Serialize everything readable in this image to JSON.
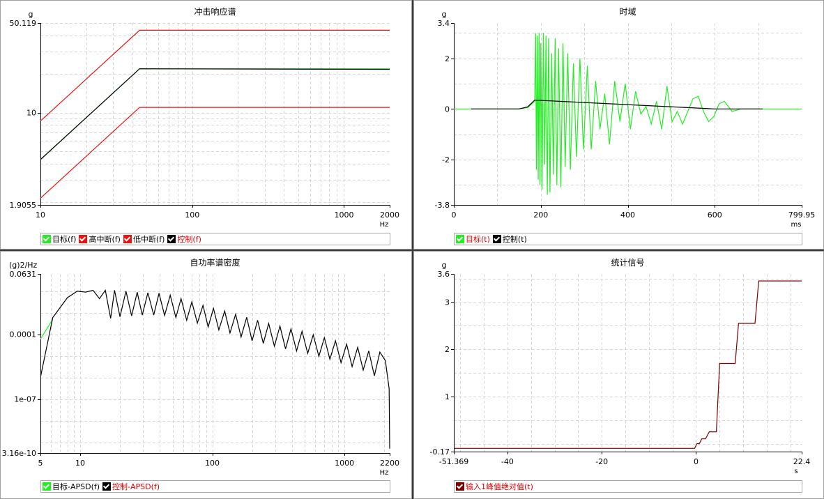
{
  "colors": {
    "green": "#22ee22",
    "red": "#ee1111",
    "black": "#000000",
    "maroon": "#7a0000",
    "grid": "#d6d6d6"
  },
  "chart_data": [
    {
      "id": "srs",
      "type": "line",
      "title": "冲击响应谱",
      "yunit": "g",
      "xunit": "Hz",
      "xscale": "log",
      "yscale": "log",
      "xlim": [
        10,
        2000
      ],
      "ylim": [
        1.9055,
        50.119
      ],
      "xticks": [
        {
          "v": 10,
          "t": "10"
        },
        {
          "v": 100,
          "t": "100"
        },
        {
          "v": 1000,
          "t": "1000"
        },
        {
          "v": 2000,
          "t": "2000"
        }
      ],
      "yticks": [
        {
          "v": 1.9055,
          "t": "1.9055"
        },
        {
          "v": 10,
          "t": "10"
        },
        {
          "v": 50.119,
          "t": "50.119"
        }
      ],
      "series": [
        {
          "name": "目标(f)",
          "color": "green",
          "x": [
            10,
            45,
            2000
          ],
          "y": [
            4.3,
            22,
            22
          ]
        },
        {
          "name": "高中断(f)",
          "color": "red",
          "x": [
            10,
            45,
            2000
          ],
          "y": [
            8.6,
            44,
            44
          ]
        },
        {
          "name": "低中断(f)",
          "color": "red",
          "x": [
            10,
            45,
            2000
          ],
          "y": [
            2.15,
            11,
            11
          ]
        },
        {
          "name": "控制(f)",
          "color": "black",
          "x": [
            10,
            45,
            2000
          ],
          "y": [
            4.3,
            22,
            21.8
          ]
        }
      ],
      "legend": [
        {
          "label": "目标(f)",
          "box": "green",
          "text": "black"
        },
        {
          "label": "高中断(f)",
          "box": "red",
          "text": "black"
        },
        {
          "label": "低中断(f)",
          "box": "red",
          "text": "black"
        },
        {
          "label": "控制(f)",
          "box": "black",
          "text": "red"
        }
      ]
    },
    {
      "id": "time",
      "type": "line",
      "title": "时域",
      "yunit": "g",
      "xunit": "ms",
      "xscale": "linear",
      "yscale": "linear",
      "xlim": [
        0,
        799.95
      ],
      "ylim": [
        -3.8,
        3.4
      ],
      "xticks": [
        {
          "v": 0,
          "t": "0"
        },
        {
          "v": 200,
          "t": "200"
        },
        {
          "v": 400,
          "t": "400"
        },
        {
          "v": 600,
          "t": "600"
        },
        {
          "v": 799.95,
          "t": "799.95"
        }
      ],
      "yticks": [
        {
          "v": -3.8,
          "t": "-3.8"
        },
        {
          "v": -2,
          "t": "-2"
        },
        {
          "v": 0,
          "t": "0"
        },
        {
          "v": 2,
          "t": "2"
        },
        {
          "v": 3.4,
          "t": "3.4"
        }
      ],
      "series": [
        {
          "name": "目标(t)",
          "color": "green",
          "x": [
            0,
            150,
            170,
            186,
            188,
            190,
            192,
            194,
            196,
            198,
            200,
            203,
            206,
            209,
            212,
            215,
            218,
            221,
            225,
            229,
            233,
            237,
            241,
            246,
            251,
            256,
            262,
            268,
            275,
            282,
            290,
            298,
            307,
            316,
            326,
            336,
            347,
            358,
            370,
            382,
            394,
            406,
            418,
            430,
            442,
            454,
            466,
            478,
            490,
            502,
            514,
            526,
            538,
            550,
            562,
            574,
            586,
            598,
            610,
            622,
            640,
            660,
            800
          ],
          "y": [
            0,
            0,
            0.05,
            0.3,
            3.0,
            -2.4,
            2.9,
            -2.8,
            3.0,
            -3.0,
            2.6,
            -3.2,
            3.0,
            -2.2,
            2.9,
            -3.4,
            2.8,
            -3.3,
            2.2,
            -2.6,
            2.8,
            -3.0,
            2.4,
            -3.1,
            2.6,
            -2.3,
            2.2,
            -2.4,
            1.8,
            -1.9,
            2.0,
            -1.6,
            1.7,
            -1.6,
            1.1,
            -0.8,
            0.6,
            -1.4,
            1.1,
            -0.5,
            1.0,
            -0.8,
            0.7,
            -0.2,
            0.1,
            -0.6,
            0.3,
            -0.8,
            0.9,
            -0.5,
            -0.1,
            -0.6,
            -0.1,
            0.4,
            0.5,
            -0.1,
            -0.5,
            -0.3,
            0.2,
            0.3,
            -0.1,
            0,
            0
          ]
        },
        {
          "name": "控制(t)",
          "color": "black",
          "x": [
            40,
            130,
            150,
            170,
            186,
            600,
            660,
            710
          ],
          "y": [
            0,
            0,
            0,
            0.08,
            0.35,
            0,
            0,
            0
          ]
        }
      ],
      "legend": [
        {
          "label": "目标(t)",
          "box": "green",
          "text": "red"
        },
        {
          "label": "控制(t)",
          "box": "black",
          "text": "black"
        }
      ]
    },
    {
      "id": "apsd",
      "type": "line",
      "title": "自功率谱密度",
      "yunit": "(g)2/Hz",
      "xunit": "Hz",
      "xscale": "log",
      "yscale": "log",
      "xlim": [
        5,
        2200
      ],
      "ylim": [
        3.16e-10,
        0.0631
      ],
      "xticks": [
        {
          "v": 5,
          "t": "5"
        },
        {
          "v": 10,
          "t": "10"
        },
        {
          "v": 100,
          "t": "100"
        },
        {
          "v": 1000,
          "t": "1000"
        },
        {
          "v": 2200,
          "t": "2200"
        }
      ],
      "yticks": [
        {
          "v": 3.16e-10,
          "t": "3.16e-10"
        },
        {
          "v": 1e-07,
          "t": "1e-07"
        },
        {
          "v": 0.0001,
          "t": "0.0001"
        },
        {
          "v": 0.0631,
          "t": "0.0631"
        }
      ],
      "series": [
        {
          "name": "目标-APSD(f)",
          "color": "green",
          "x": [
            5,
            6.2
          ],
          "y": [
            6e-05,
            0.0005
          ]
        },
        {
          "name": "控制-APSD(f)",
          "color": "black",
          "x": [
            5,
            6.2,
            8,
            9.5,
            11,
            12.5,
            14,
            15.5,
            17,
            18.2,
            20,
            22.2,
            24.5,
            27,
            29.5,
            32.5,
            36,
            39.5,
            43.5,
            48,
            53,
            58,
            64,
            70,
            77,
            85,
            93,
            102,
            112,
            124,
            136,
            150,
            165,
            182,
            200,
            220,
            243,
            267,
            295,
            325,
            358,
            394,
            434,
            478,
            527,
            580,
            640,
            705,
            776,
            855,
            942,
            1038,
            1143,
            1259,
            1387,
            1528,
            1683,
            1854,
            2040,
            2180,
            2200
          ],
          "y": [
            1e-06,
            0.0006,
            0.005,
            0.01,
            0.009,
            0.011,
            0.0045,
            0.011,
            0.00055,
            0.011,
            0.00065,
            0.01,
            0.00072,
            0.009,
            0.00078,
            0.0085,
            0.00078,
            0.008,
            0.00075,
            0.0065,
            0.0006,
            0.0045,
            0.00045,
            0.0032,
            0.00033,
            0.0022,
            0.00022,
            0.0016,
            0.00016,
            0.0012,
            0.000115,
            0.00085,
            7.5e-05,
            0.00062,
            5e-05,
            0.00045,
            3.8e-05,
            0.00032,
            2.8e-05,
            0.00024,
            2.1e-05,
            0.00018,
            1.7e-05,
            0.00014,
            1.3e-05,
            9.5e-05,
            9.5e-06,
            7e-05,
            7e-06,
            5e-05,
            4.8e-06,
            3.5e-05,
            3.2e-06,
            2.5e-05,
            2.2e-06,
            1.7e-05,
            1.2e-06,
            1.5e-05,
            6e-06,
            3e-07,
            5e-10
          ]
        }
      ],
      "legend": [
        {
          "label": "目标-APSD(f)",
          "box": "green",
          "text": "black"
        },
        {
          "label": "控制-APSD(f)",
          "box": "black",
          "text": "red"
        }
      ]
    },
    {
      "id": "stat",
      "type": "line",
      "title": "统计信号",
      "yunit": "g",
      "xunit": "s",
      "xscale": "linear",
      "yscale": "linear",
      "xlim": [
        -51.369,
        22.4
      ],
      "ylim": [
        -0.17,
        3.6
      ],
      "xticks": [
        {
          "v": -51.369,
          "t": "-51.369"
        },
        {
          "v": -40,
          "t": "-40"
        },
        {
          "v": -20,
          "t": "-20"
        },
        {
          "v": 0,
          "t": "0"
        },
        {
          "v": 22.4,
          "t": "22.4"
        }
      ],
      "yticks": [
        {
          "v": -0.17,
          "t": "-0.17"
        },
        {
          "v": 1,
          "t": "1"
        },
        {
          "v": 2,
          "t": "2"
        },
        {
          "v": 3,
          "t": "3"
        },
        {
          "v": 3.6,
          "t": "3.6"
        }
      ],
      "series": [
        {
          "name": "输入1峰值绝对值(t)",
          "color": "maroon",
          "x": [
            -51.369,
            -0.3,
            0.2,
            0.7,
            1.2,
            2.0,
            2.8,
            4.3,
            5.0,
            8.3,
            9.0,
            12.5,
            13.3,
            22.4
          ],
          "y": [
            -0.1,
            -0.1,
            0.0,
            0.0,
            0.1,
            0.1,
            0.25,
            0.25,
            1.7,
            1.7,
            2.55,
            2.55,
            3.45,
            3.45
          ]
        }
      ],
      "legend": [
        {
          "label": "输入1峰值绝对值(t)",
          "box": "maroon",
          "text": "red"
        }
      ]
    }
  ]
}
